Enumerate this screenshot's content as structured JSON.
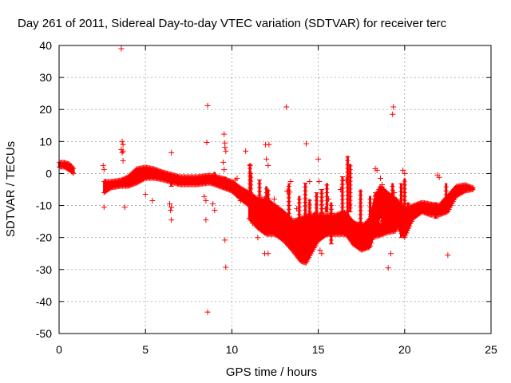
{
  "chart_data": {
    "type": "scatter",
    "title": "Day 261 of 2011, Sidereal Day-to-day VTEC variation (SDTVAR) for receiver terc",
    "xlabel": "GPS time / hours",
    "ylabel": "SDTVAR / TECUs",
    "xlim": [
      0,
      25
    ],
    "ylim": [
      -50,
      40
    ],
    "xticks": [
      0,
      5,
      10,
      15,
      20,
      25
    ],
    "yticks": [
      -50,
      -40,
      -30,
      -20,
      -10,
      0,
      10,
      20,
      30,
      40
    ],
    "grid": true,
    "marker": "+",
    "color": "#ff0000",
    "bands": [
      [
        [
          0.0,
          3.5,
          2.0
        ],
        [
          0.3,
          3.5,
          2.0
        ],
        [
          0.6,
          3.0,
          1.0
        ],
        [
          0.85,
          1.5,
          0.0
        ]
      ],
      [
        [
          2.6,
          -2.5,
          -6.0
        ],
        [
          3.0,
          -2.5,
          -4.5
        ],
        [
          3.6,
          -2.0,
          -4.0
        ],
        [
          4.0,
          -1.0,
          -4.0
        ],
        [
          4.5,
          1.5,
          -3.0
        ],
        [
          5.0,
          2.0,
          -1.5
        ],
        [
          5.5,
          1.5,
          -1.5
        ],
        [
          6.0,
          0.5,
          -2.0
        ],
        [
          7.0,
          -1.0,
          -3.5
        ],
        [
          8.0,
          -1.0,
          -3.5
        ],
        [
          8.7,
          -0.5,
          -3.0
        ],
        [
          9.0,
          -0.8,
          -3.5
        ],
        [
          9.5,
          -1.5,
          -4.5
        ],
        [
          10.0,
          -2.5,
          -5.5
        ],
        [
          10.5,
          -4.5,
          -8.0
        ],
        [
          11.0,
          -6.0,
          -10.0
        ],
        [
          11.5,
          -8.0,
          -13.0
        ],
        [
          12.0,
          -8.0,
          -16.0
        ],
        [
          12.5,
          -10.0,
          -19.0
        ],
        [
          13.0,
          -12.0,
          -21.0
        ],
        [
          13.5,
          -15.0,
          -24.0
        ],
        [
          14.0,
          -17.0,
          -27.5
        ],
        [
          14.3,
          -18.0,
          -28.0
        ],
        [
          14.7,
          -16.0,
          -24.0
        ],
        [
          15.0,
          -13.0,
          -21.0
        ],
        [
          15.5,
          -13.0,
          -19.0
        ],
        [
          16.0,
          -13.0,
          -18.0
        ],
        [
          16.5,
          -12.0,
          -18.0
        ],
        [
          17.0,
          -15.0,
          -22.0
        ],
        [
          17.5,
          -17.0,
          -24.0
        ],
        [
          18.0,
          -14.0,
          -23.0
        ],
        [
          18.3,
          -7.0,
          -18.0
        ],
        [
          18.6,
          -4.0,
          -13.0
        ],
        [
          19.0,
          -6.0,
          -16.0
        ],
        [
          19.5,
          -8.0,
          -16.0
        ],
        [
          20.0,
          -11.0,
          -20.0
        ],
        [
          20.5,
          -10.0,
          -14.0
        ],
        [
          21.0,
          -9.0,
          -12.0
        ],
        [
          21.5,
          -9.5,
          -13.0
        ],
        [
          22.0,
          -10.0,
          -13.0
        ],
        [
          22.5,
          -7.0,
          -12.0
        ],
        [
          23.0,
          -4.0,
          -7.0
        ],
        [
          23.5,
          -3.5,
          -5.5
        ],
        [
          24.0,
          -4.5,
          -5.0
        ]
      ],
      [
        [
          11.0,
          -9.0,
          -14.0
        ],
        [
          11.5,
          -11.0,
          -17.0
        ],
        [
          12.0,
          -12.0,
          -19.0
        ],
        [
          12.5,
          -13.0,
          -19.0
        ],
        [
          13.0,
          -14.0,
          -20.0
        ],
        [
          13.5,
          -15.0,
          -20.0
        ],
        [
          14.0,
          -14.0,
          -20.0
        ],
        [
          14.5,
          -13.0,
          -19.0
        ],
        [
          15.0,
          -13.0,
          -19.0
        ],
        [
          15.5,
          -14.0,
          -19.0
        ],
        [
          16.0,
          -14.5,
          -19.0
        ],
        [
          16.5,
          -15.0,
          -19.0
        ],
        [
          17.0,
          -15.5,
          -20.0
        ],
        [
          17.5,
          -16.0,
          -20.5
        ],
        [
          18.0,
          -16.0,
          -20.0
        ],
        [
          18.5,
          -16.0,
          -19.5
        ],
        [
          19.0,
          -15.0,
          -18.5
        ],
        [
          19.5,
          -14.0,
          -18.0
        ]
      ]
    ],
    "spikes": [
      [
        11.05,
        3.0,
        -8.0
      ],
      [
        11.1,
        0.0,
        -12.0
      ],
      [
        11.6,
        -2.0,
        -14.0
      ],
      [
        12.0,
        -4.0,
        -18.0
      ],
      [
        12.1,
        -5.0,
        -15.0
      ],
      [
        13.3,
        -3.0,
        -16.0
      ],
      [
        13.9,
        -7.0,
        -20.0
      ],
      [
        14.25,
        -3.0,
        -21.0
      ],
      [
        14.5,
        -8.0,
        -18.0
      ],
      [
        14.9,
        -6.0,
        -18.0
      ],
      [
        15.2,
        -5.0,
        -17.0
      ],
      [
        15.5,
        -3.0,
        -12.0
      ],
      [
        15.75,
        -9.0,
        -22.0
      ],
      [
        16.4,
        -1.0,
        -13.0
      ],
      [
        16.7,
        5.5,
        -14.0
      ],
      [
        16.85,
        3.0,
        -12.0
      ],
      [
        17.45,
        -5.0,
        -20.0
      ],
      [
        18.0,
        -7.0,
        -14.0
      ],
      [
        18.3,
        -6.0,
        -12.0
      ],
      [
        18.7,
        -4.0,
        -15.0
      ],
      [
        19.3,
        -3.0,
        -16.0
      ],
      [
        19.8,
        -3.0,
        -20.0
      ],
      [
        20.0,
        -1.5,
        -18.0
      ],
      [
        20.2,
        -9.0,
        -13.0
      ],
      [
        21.8,
        -9.0,
        -14.0
      ],
      [
        22.4,
        -3.0,
        -9.0
      ],
      [
        6.5,
        -2.0,
        -4.0
      ],
      [
        9.0,
        0.5,
        -3.0
      ],
      [
        9.6,
        -1.0,
        -4.5
      ]
    ],
    "outliers": [
      [
        3.6,
        39
      ],
      [
        3.65,
        10
      ],
      [
        3.7,
        9
      ],
      [
        3.6,
        7.5
      ],
      [
        3.7,
        7
      ],
      [
        3.65,
        6.5
      ],
      [
        3.7,
        4
      ],
      [
        3.8,
        -10.5
      ],
      [
        2.55,
        2.5
      ],
      [
        2.6,
        1.2
      ],
      [
        2.6,
        -10.5
      ],
      [
        2.7,
        -2.5
      ],
      [
        5.0,
        -6.5
      ],
      [
        5.4,
        -8.5
      ],
      [
        6.4,
        -9.5
      ],
      [
        6.5,
        -10.5
      ],
      [
        6.45,
        -11.5
      ],
      [
        6.5,
        -14.5
      ],
      [
        6.5,
        6.5
      ],
      [
        8.4,
        -7.2
      ],
      [
        8.5,
        -8.5
      ],
      [
        8.5,
        -14.5
      ],
      [
        8.55,
        9.7
      ],
      [
        8.6,
        21.2
      ],
      [
        8.6,
        -43.3
      ],
      [
        8.9,
        -9.5
      ],
      [
        9.0,
        -11.5
      ],
      [
        9.55,
        12.3
      ],
      [
        9.6,
        9.5
      ],
      [
        9.6,
        8.2
      ],
      [
        9.65,
        7
      ],
      [
        9.5,
        3.5
      ],
      [
        9.55,
        1.2
      ],
      [
        9.6,
        -20.8
      ],
      [
        9.65,
        -29.3
      ],
      [
        10.2,
        -2
      ],
      [
        10.3,
        -1.5
      ],
      [
        10.5,
        -8.5
      ],
      [
        10.8,
        7
      ],
      [
        11.05,
        2.5
      ],
      [
        11.2,
        -15.5
      ],
      [
        11.5,
        -16
      ],
      [
        11.5,
        -20
      ],
      [
        11.9,
        -25
      ],
      [
        12.1,
        -25
      ],
      [
        12.1,
        2.5
      ],
      [
        12.0,
        4.5
      ],
      [
        11.95,
        9
      ],
      [
        12.15,
        9
      ],
      [
        12.2,
        -11
      ],
      [
        12.45,
        -8
      ],
      [
        12.5,
        -10
      ],
      [
        12.6,
        -14
      ],
      [
        12.9,
        -13
      ],
      [
        13.15,
        20.8
      ],
      [
        13.2,
        -5.5
      ],
      [
        13.35,
        -5.8
      ],
      [
        13.45,
        -14
      ],
      [
        13.4,
        -2.5
      ],
      [
        13.75,
        -11
      ],
      [
        14.2,
        -22
      ],
      [
        14.25,
        -24
      ],
      [
        14.3,
        9.3
      ],
      [
        14.5,
        -2.5
      ],
      [
        14.75,
        -13
      ],
      [
        14.8,
        -13
      ],
      [
        15.0,
        4.5
      ],
      [
        15.05,
        -2.5
      ],
      [
        15.1,
        -24
      ],
      [
        15.2,
        -25
      ],
      [
        15.4,
        -11
      ],
      [
        15.5,
        -16
      ],
      [
        15.6,
        -8
      ],
      [
        16.3,
        -5
      ],
      [
        16.6,
        -2
      ],
      [
        16.8,
        -10
      ],
      [
        17.7,
        -17
      ],
      [
        18.3,
        1.5
      ],
      [
        18.4,
        1.0
      ],
      [
        18.6,
        -1.5
      ],
      [
        18.7,
        -3.5
      ],
      [
        19.05,
        -29.5
      ],
      [
        19.2,
        -25
      ],
      [
        19.35,
        20.8
      ],
      [
        19.3,
        18.5
      ],
      [
        19.4,
        -6
      ],
      [
        19.9,
        1
      ],
      [
        20.0,
        0
      ],
      [
        21.9,
        -0.5
      ],
      [
        22.0,
        -1.2
      ],
      [
        22.5,
        -25.5
      ]
    ]
  }
}
